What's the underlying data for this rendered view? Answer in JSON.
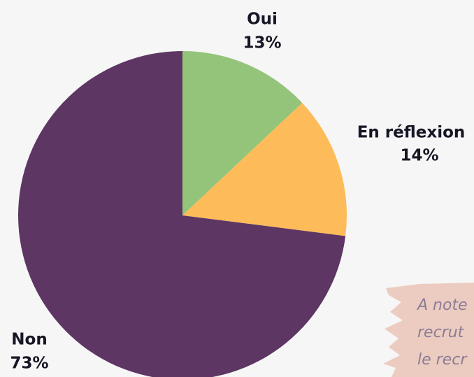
{
  "chart_data": {
    "type": "pie",
    "categories": [
      "Oui",
      "En réflexion",
      "Non"
    ],
    "values": [
      13,
      14,
      73
    ],
    "value_labels": [
      "13%",
      "14%",
      "73%"
    ],
    "colors": [
      "#94c47a",
      "#fdbb5a",
      "#5d3663"
    ],
    "annotations": [
      "A note",
      "recrut",
      "le recr"
    ]
  }
}
